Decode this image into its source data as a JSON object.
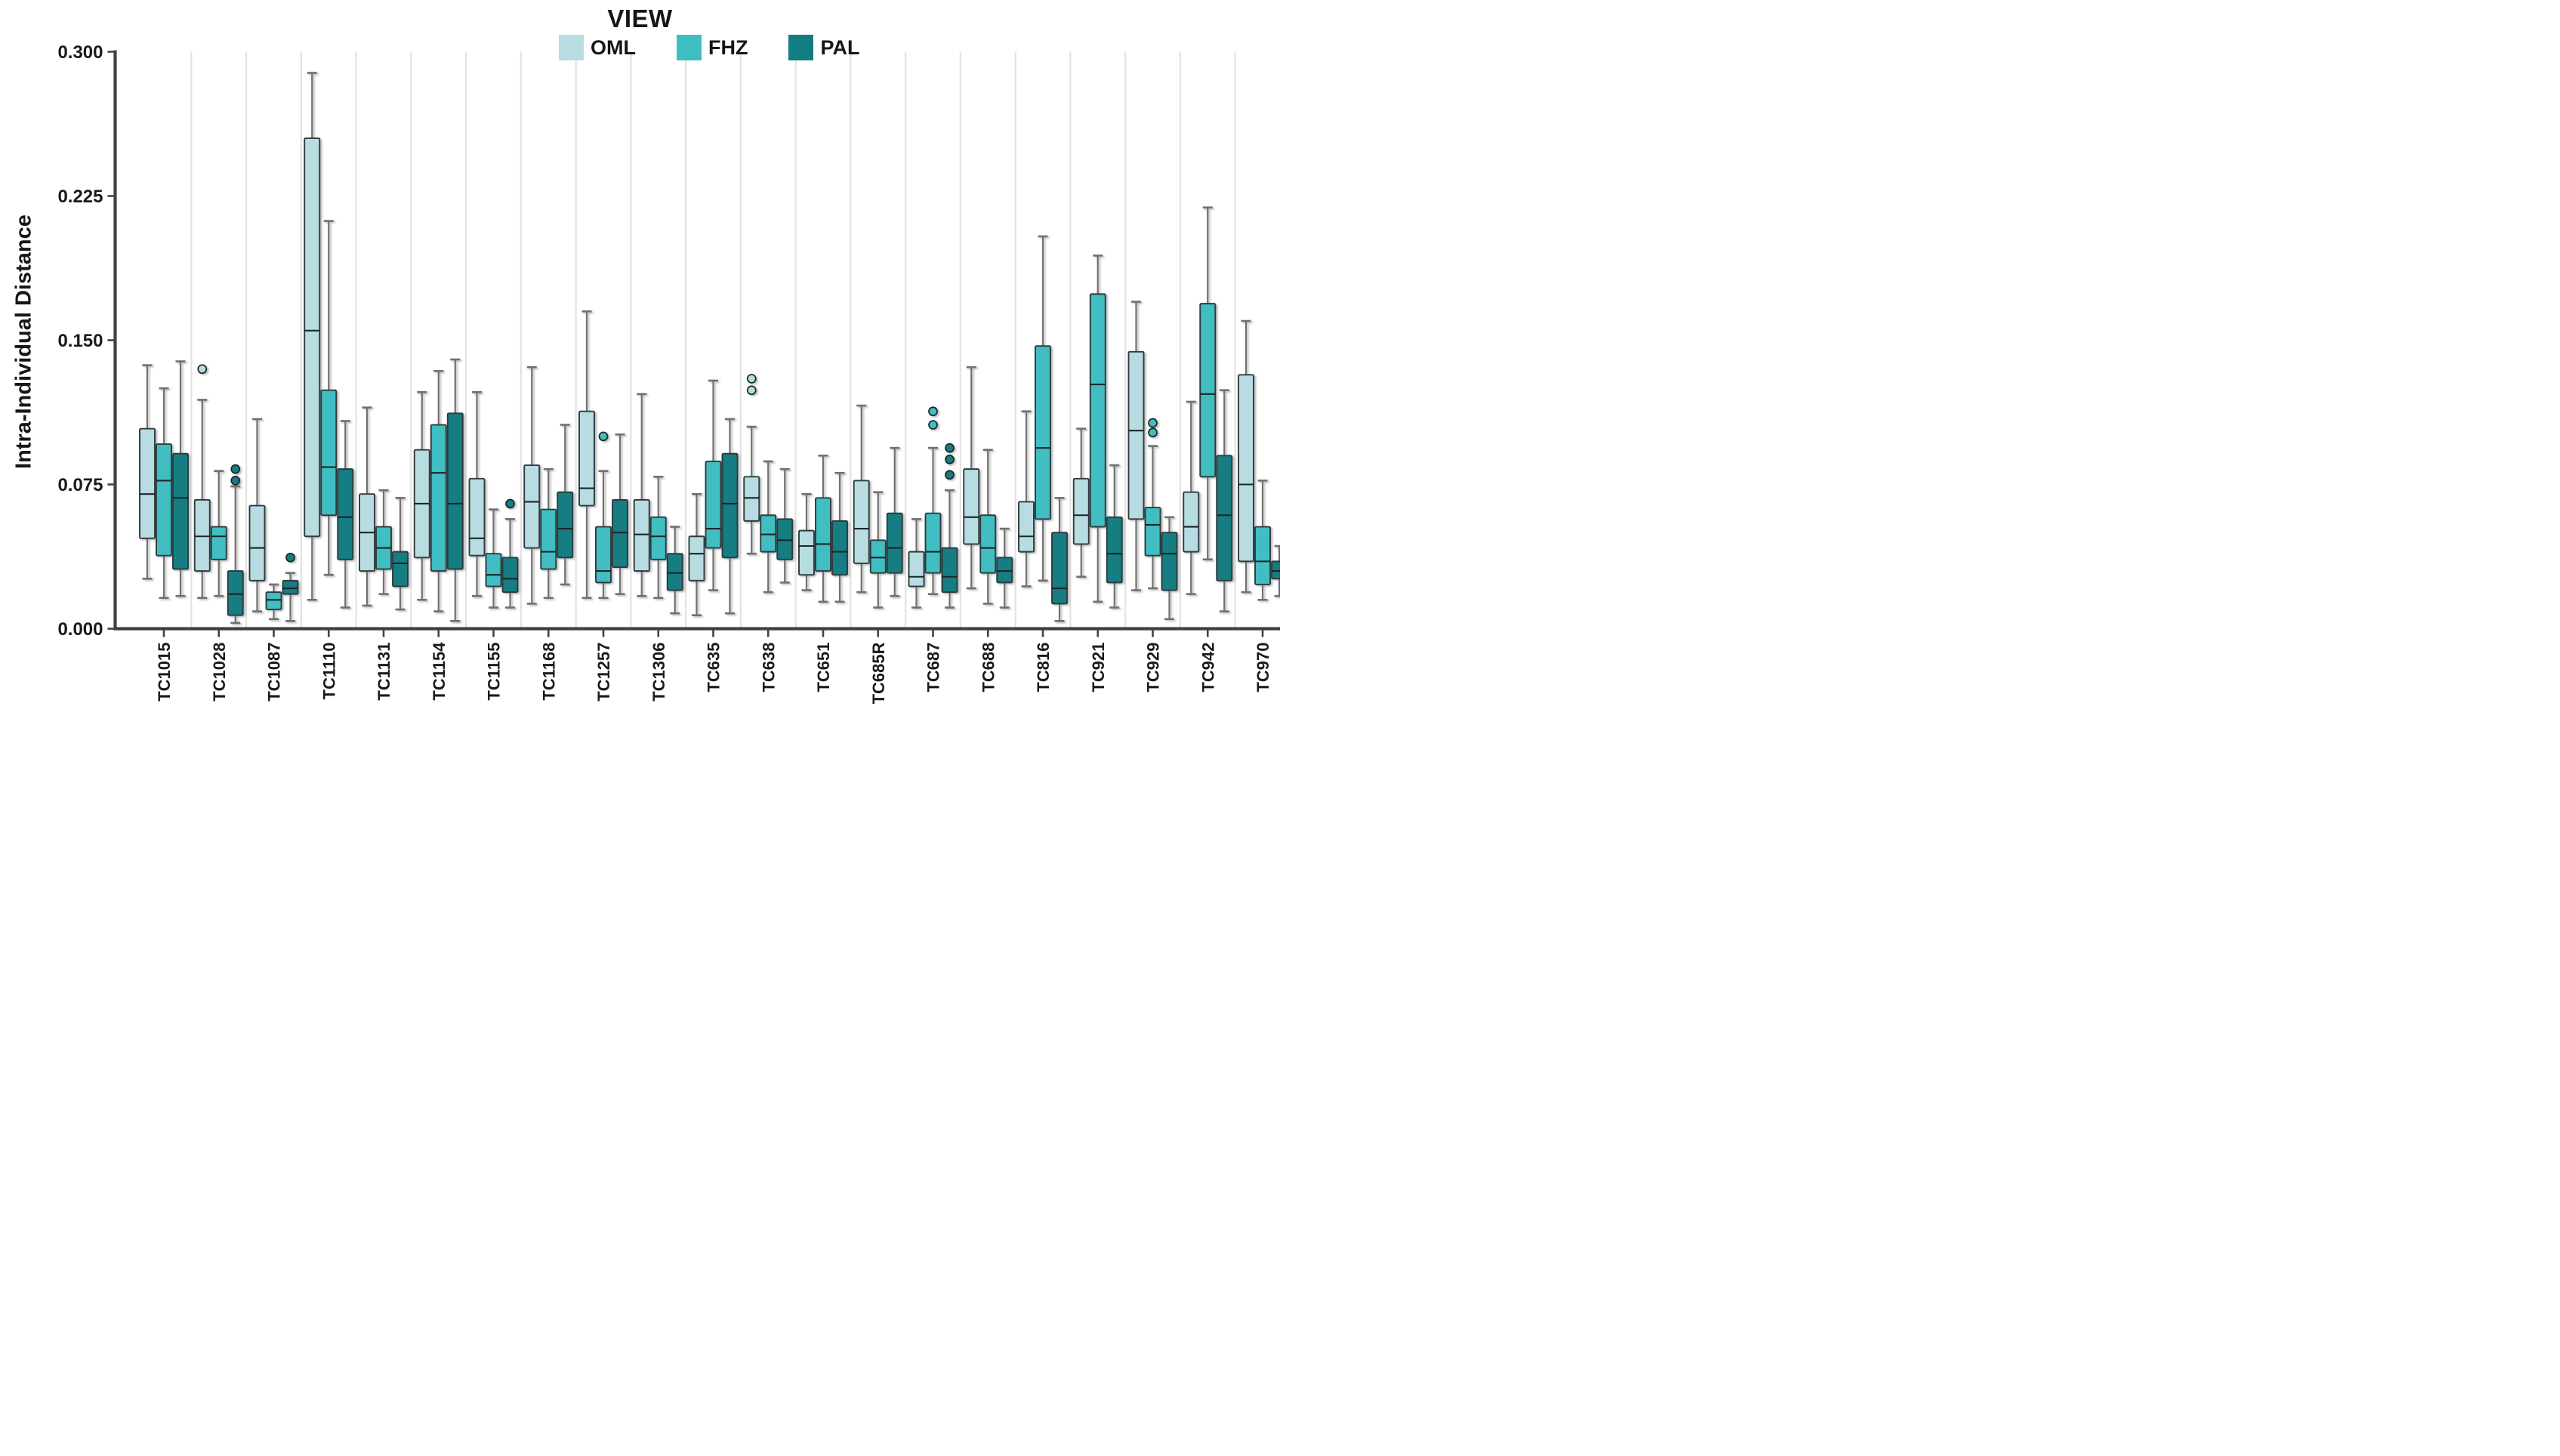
{
  "chart": {
    "title": "VIEW",
    "y_axis_label": "Intra-Individual Distance"
  },
  "chart_data": {
    "type": "grouped_boxplot",
    "title": "VIEW",
    "xlabel": "",
    "ylabel": "Intra-Individual Distance",
    "ylim": [
      0.0,
      0.3
    ],
    "yticks": [
      0.0,
      0.075,
      0.15,
      0.225,
      0.3
    ],
    "ytick_labels": [
      "0.000",
      "0.075",
      "0.150",
      "0.225",
      "0.300"
    ],
    "grid": "vertical-group-separators",
    "legend_position": "top-center",
    "box_value_order": [
      "whisker_low",
      "q1",
      "median",
      "q3",
      "whisker_high"
    ],
    "categories": [
      "TC1015",
      "TC1028",
      "TC1087",
      "TC1110",
      "TC1131",
      "TC1154",
      "TC1155",
      "TC1168",
      "TC1257",
      "TC1306",
      "TC635",
      "TC638",
      "TC651",
      "TC685R",
      "TC687",
      "TC688",
      "TC816",
      "TC921",
      "TC929",
      "TC942",
      "TC970"
    ],
    "series": [
      {
        "name": "OML",
        "color": "#b7dce2",
        "boxes": [
          [
            0.026,
            0.047,
            0.07,
            0.104,
            0.137
          ],
          [
            0.016,
            0.03,
            0.048,
            0.067,
            0.119
          ],
          [
            0.009,
            0.025,
            0.042,
            0.064,
            0.109
          ],
          [
            0.015,
            0.048,
            0.155,
            0.255,
            0.289
          ],
          [
            0.012,
            0.03,
            0.05,
            0.07,
            0.115
          ],
          [
            0.015,
            0.037,
            0.065,
            0.093,
            0.123
          ],
          [
            0.017,
            0.038,
            0.047,
            0.078,
            0.123
          ],
          [
            0.013,
            0.042,
            0.066,
            0.085,
            0.136
          ],
          [
            0.016,
            0.064,
            0.073,
            0.113,
            0.165
          ],
          [
            0.017,
            0.03,
            0.049,
            0.067,
            0.122
          ],
          [
            0.007,
            0.025,
            0.039,
            0.048,
            0.07
          ],
          [
            0.039,
            0.056,
            0.068,
            0.079,
            0.105
          ],
          [
            0.02,
            0.028,
            0.043,
            0.051,
            0.07
          ],
          [
            0.019,
            0.034,
            0.052,
            0.077,
            0.116
          ],
          [
            0.011,
            0.022,
            0.027,
            0.04,
            0.057
          ],
          [
            0.021,
            0.044,
            0.058,
            0.083,
            0.136
          ],
          [
            0.022,
            0.04,
            0.048,
            0.066,
            0.113
          ],
          [
            0.027,
            0.044,
            0.059,
            0.078,
            0.104
          ],
          [
            0.02,
            0.057,
            0.103,
            0.144,
            0.17
          ],
          [
            0.018,
            0.04,
            0.053,
            0.071,
            0.118
          ],
          [
            0.019,
            0.035,
            0.075,
            0.132,
            0.16
          ]
        ],
        "outliers": [
          [],
          [
            0.135
          ],
          [],
          [],
          [],
          [],
          [],
          [],
          [],
          [],
          [],
          [
            0.124,
            0.13
          ],
          [],
          [],
          [],
          [],
          [],
          [],
          [],
          [],
          []
        ]
      },
      {
        "name": "FHZ",
        "color": "#3fbec2",
        "boxes": [
          [
            0.016,
            0.038,
            0.077,
            0.096,
            0.125
          ],
          [
            0.017,
            0.036,
            0.048,
            0.053,
            0.082
          ],
          [
            0.005,
            0.01,
            0.015,
            0.019,
            0.023
          ],
          [
            0.028,
            0.059,
            0.084,
            0.124,
            0.212
          ],
          [
            0.018,
            0.031,
            0.042,
            0.053,
            0.072
          ],
          [
            0.009,
            0.03,
            0.081,
            0.106,
            0.134
          ],
          [
            0.011,
            0.022,
            0.028,
            0.039,
            0.062
          ],
          [
            0.016,
            0.031,
            0.04,
            0.062,
            0.083
          ],
          [
            0.016,
            0.024,
            0.03,
            0.053,
            0.082
          ],
          [
            0.016,
            0.036,
            0.048,
            0.058,
            0.079
          ],
          [
            0.02,
            0.042,
            0.052,
            0.087,
            0.129
          ],
          [
            0.019,
            0.04,
            0.049,
            0.059,
            0.087
          ],
          [
            0.014,
            0.03,
            0.044,
            0.068,
            0.09
          ],
          [
            0.011,
            0.029,
            0.037,
            0.046,
            0.071
          ],
          [
            0.018,
            0.029,
            0.04,
            0.06,
            0.094
          ],
          [
            0.013,
            0.029,
            0.042,
            0.059,
            0.093
          ],
          [
            0.025,
            0.057,
            0.094,
            0.147,
            0.204
          ],
          [
            0.014,
            0.053,
            0.127,
            0.174,
            0.194
          ],
          [
            0.021,
            0.038,
            0.054,
            0.063,
            0.095
          ],
          [
            0.036,
            0.079,
            0.122,
            0.169,
            0.219
          ],
          [
            0.015,
            0.023,
            0.035,
            0.053,
            0.077
          ]
        ],
        "outliers": [
          [],
          [],
          [],
          [],
          [],
          [],
          [],
          [],
          [
            0.1
          ],
          [],
          [],
          [],
          [],
          [],
          [
            0.106,
            0.113
          ],
          [],
          [],
          [],
          [
            0.102,
            0.107
          ],
          [],
          []
        ]
      },
      {
        "name": "PAL",
        "color": "#137d82",
        "boxes": [
          [
            0.017,
            0.031,
            0.068,
            0.091,
            0.139
          ],
          [
            0.003,
            0.007,
            0.018,
            0.03,
            0.074
          ],
          [
            0.004,
            0.018,
            0.021,
            0.025,
            0.029
          ],
          [
            0.011,
            0.036,
            0.058,
            0.083,
            0.108
          ],
          [
            0.01,
            0.022,
            0.034,
            0.04,
            0.068
          ],
          [
            0.004,
            0.031,
            0.065,
            0.112,
            0.14
          ],
          [
            0.011,
            0.019,
            0.026,
            0.037,
            0.057
          ],
          [
            0.023,
            0.037,
            0.052,
            0.071,
            0.106
          ],
          [
            0.018,
            0.032,
            0.05,
            0.067,
            0.101
          ],
          [
            0.008,
            0.02,
            0.029,
            0.039,
            0.053
          ],
          [
            0.008,
            0.037,
            0.065,
            0.091,
            0.109
          ],
          [
            0.024,
            0.036,
            0.046,
            0.057,
            0.083
          ],
          [
            0.014,
            0.028,
            0.04,
            0.056,
            0.081
          ],
          [
            0.017,
            0.029,
            0.042,
            0.06,
            0.094
          ],
          [
            0.011,
            0.019,
            0.027,
            0.042,
            0.072
          ],
          [
            0.011,
            0.024,
            0.03,
            0.037,
            0.052
          ],
          [
            0.004,
            0.013,
            0.021,
            0.05,
            0.068
          ],
          [
            0.011,
            0.024,
            0.039,
            0.058,
            0.085
          ],
          [
            0.005,
            0.02,
            0.039,
            0.05,
            0.058
          ],
          [
            0.009,
            0.025,
            0.059,
            0.09,
            0.124
          ],
          [
            0.017,
            0.026,
            0.03,
            0.035,
            0.043
          ]
        ],
        "outliers": [
          [],
          [
            0.077,
            0.083
          ],
          [
            0.037
          ],
          [],
          [],
          [],
          [
            0.065
          ],
          [],
          [],
          [],
          [],
          [],
          [],
          [],
          [
            0.08,
            0.088,
            0.094
          ],
          [],
          [],
          [],
          [],
          [],
          []
        ]
      }
    ],
    "style": {
      "box_stroke": "#2e3a3c",
      "median_stroke": "#1d2527",
      "whisker_stroke": "#6f6f6f",
      "separator_stroke": "#e3e3e3",
      "axis_stroke": "#414141",
      "background": "#ffffff"
    }
  }
}
